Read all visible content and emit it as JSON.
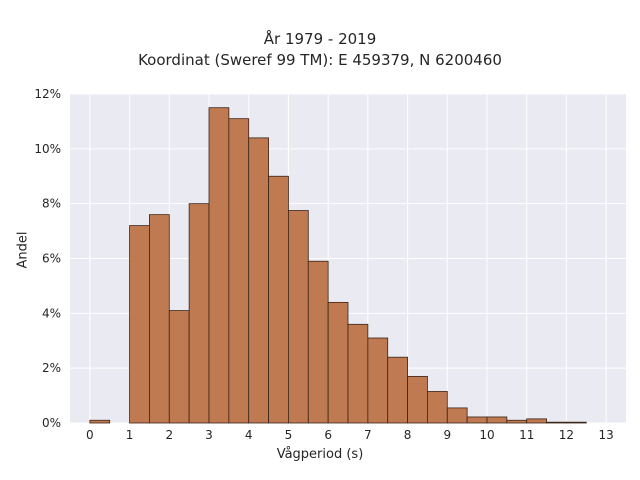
{
  "chart_data": {
    "type": "bar",
    "title_line1": "År 1979 - 2019",
    "title_line2": "Koordinat (Sweref 99 TM): E 459379, N 6200460",
    "xlabel": "Vågperiod (s)",
    "ylabel": "Andel",
    "xlim": [
      -0.5,
      13.5
    ],
    "ylim": [
      0,
      12
    ],
    "xticks": [
      "0",
      "1",
      "2",
      "3",
      "4",
      "5",
      "6",
      "7",
      "8",
      "9",
      "10",
      "11",
      "12",
      "13"
    ],
    "yticks": [
      "0%",
      "2%",
      "4%",
      "6%",
      "8%",
      "10%",
      "12%"
    ],
    "grid": true,
    "bin_width": 0.5,
    "bins": [
      {
        "x0": 0.0,
        "value": 0.1
      },
      {
        "x0": 0.5,
        "value": 0.0
      },
      {
        "x0": 1.0,
        "value": 7.2
      },
      {
        "x0": 1.5,
        "value": 7.6
      },
      {
        "x0": 2.0,
        "value": 4.1
      },
      {
        "x0": 2.5,
        "value": 8.0
      },
      {
        "x0": 3.0,
        "value": 11.5
      },
      {
        "x0": 3.5,
        "value": 11.1
      },
      {
        "x0": 4.0,
        "value": 10.4
      },
      {
        "x0": 4.5,
        "value": 9.0
      },
      {
        "x0": 5.0,
        "value": 7.75
      },
      {
        "x0": 5.5,
        "value": 5.9
      },
      {
        "x0": 6.0,
        "value": 4.4
      },
      {
        "x0": 6.5,
        "value": 3.6
      },
      {
        "x0": 7.0,
        "value": 3.1
      },
      {
        "x0": 7.5,
        "value": 2.4
      },
      {
        "x0": 8.0,
        "value": 1.7
      },
      {
        "x0": 8.5,
        "value": 1.15
      },
      {
        "x0": 9.0,
        "value": 0.55
      },
      {
        "x0": 9.5,
        "value": 0.22
      },
      {
        "x0": 10.0,
        "value": 0.22
      },
      {
        "x0": 10.5,
        "value": 0.1
      },
      {
        "x0": 11.0,
        "value": 0.15
      },
      {
        "x0": 11.5,
        "value": 0.03
      },
      {
        "x0": 12.0,
        "value": 0.03
      }
    ],
    "colors": {
      "bar_fill": "#c07a52",
      "bar_edge": "#3a2418",
      "plot_bg": "#eaeaf2",
      "grid": "#ffffff"
    }
  }
}
